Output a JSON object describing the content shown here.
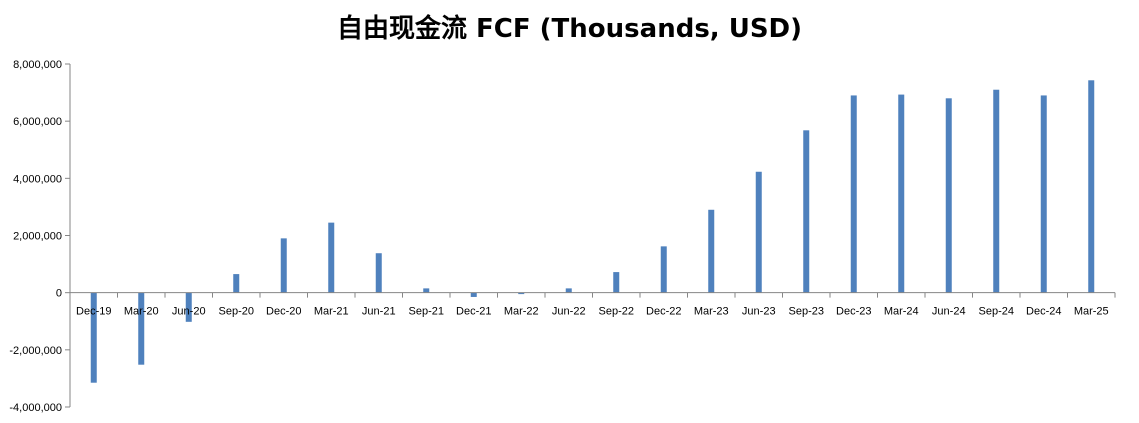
{
  "chart_data": {
    "type": "bar",
    "title": "自由现金流 FCF (Thousands, USD)",
    "xlabel": "",
    "ylabel": "",
    "categories": [
      "Dec-19",
      "Mar-20",
      "Jun-20",
      "Sep-20",
      "Dec-20",
      "Mar-21",
      "Jun-21",
      "Sep-21",
      "Dec-21",
      "Mar-22",
      "Jun-22",
      "Sep-22",
      "Dec-22",
      "Mar-23",
      "Jun-23",
      "Sep-23",
      "Dec-23",
      "Mar-24",
      "Jun-24",
      "Sep-24",
      "Dec-24",
      "Mar-25"
    ],
    "values": [
      -3150000,
      -2520000,
      -1020000,
      650000,
      1900000,
      2450000,
      1380000,
      150000,
      -150000,
      -50000,
      150000,
      720000,
      1620000,
      2900000,
      4230000,
      5680000,
      6900000,
      6930000,
      6800000,
      7100000,
      6900000,
      7430000
    ],
    "ylim": [
      -4000000,
      8000000
    ],
    "yticks": [
      -4000000,
      -2000000,
      0,
      2000000,
      4000000,
      6000000,
      8000000
    ],
    "ytick_labels": [
      "-4,000,000",
      "-2,000,000",
      "0",
      "2,000,000",
      "4,000,000",
      "6,000,000",
      "8,000,000"
    ],
    "bar_color": "#4F81BD",
    "grid": false,
    "legend": "none"
  }
}
